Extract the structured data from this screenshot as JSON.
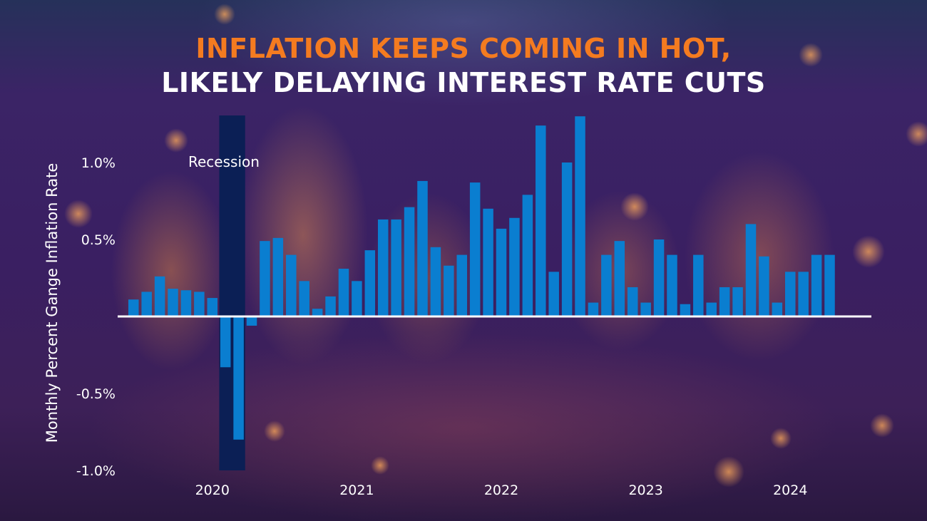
{
  "title_line1": "INFLATION KEEPS COMING IN HOT,",
  "title_line2": "LIKELY DELAYING INTEREST RATE CUTS",
  "colors": {
    "bar": "#0a7ed0",
    "recession_band": "#0b1f55",
    "title_accent": "#f47b20",
    "zero_line": "#ffffff"
  },
  "chart_data": {
    "type": "bar",
    "ylabel": "Monthly Percent Gange Inflation Rate",
    "ylim": [
      -1.0,
      1.3
    ],
    "yticks": [
      {
        "value": 1.0,
        "label": "1.0%"
      },
      {
        "value": 0.5,
        "label": "0.5%"
      },
      {
        "value": -0.5,
        "label": "-0.5%"
      },
      {
        "value": -1.0,
        "label": "-1.0%"
      }
    ],
    "xticks": [
      {
        "index": 6,
        "label": "2020"
      },
      {
        "index": 17,
        "label": "2021"
      },
      {
        "index": 28,
        "label": "2022"
      },
      {
        "index": 39,
        "label": "2023"
      },
      {
        "index": 50,
        "label": "2024"
      }
    ],
    "recession": {
      "label": "Recession",
      "start_index": 7,
      "end_index": 8
    },
    "values": [
      0.11,
      0.16,
      0.26,
      0.18,
      0.17,
      0.16,
      0.12,
      -0.33,
      -0.8,
      -0.06,
      0.49,
      0.51,
      0.4,
      0.23,
      0.05,
      0.13,
      0.31,
      0.23,
      0.43,
      0.63,
      0.63,
      0.71,
      0.88,
      0.45,
      0.33,
      0.4,
      0.87,
      0.7,
      0.57,
      0.64,
      0.79,
      1.24,
      0.29,
      1.0,
      1.3,
      0.09,
      0.4,
      0.49,
      0.19,
      0.09,
      0.5,
      0.4,
      0.08,
      0.4,
      0.09,
      0.19,
      0.19,
      0.6,
      0.39,
      0.09,
      0.29,
      0.29,
      0.4,
      0.4
    ]
  }
}
